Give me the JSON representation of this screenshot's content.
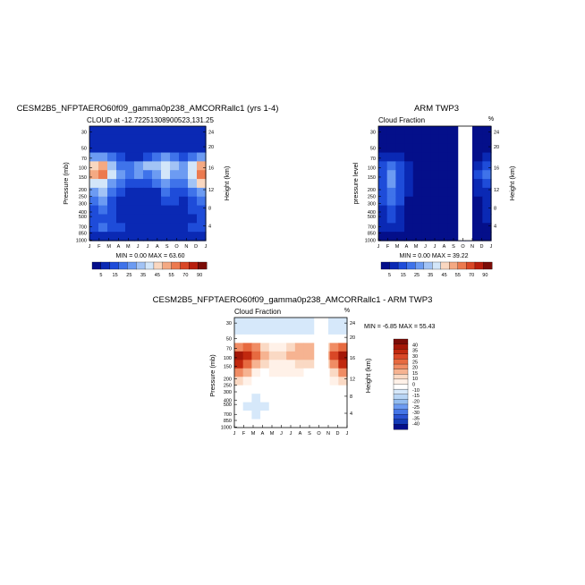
{
  "figure": {
    "panels": [
      {
        "title": "CESM2B5_NFPTAERO60f09_gamma0p238_AMCORRallc1 (yrs 1-4)",
        "subtitle": "CLOUD at -12.72251308900523,131.25",
        "left_unit": "",
        "right_unit": "",
        "ylabel": "Pressure (mb)",
        "ylabel_right": "Height (km)",
        "stats": "MIN =    0.00 MAX =   63.60"
      },
      {
        "title": "ARM TWP3",
        "subtitle": "Cloud Fraction",
        "left_unit": "",
        "right_unit": "%",
        "ylabel": "pressure level",
        "ylabel_right": "Height (km)",
        "stats": "MIN =    0.00 MAX =   39.22"
      },
      {
        "title": "CESM2B5_NFPTAERO60f09_gamma0p238_AMCORRallc1 - ARM TWP3",
        "subtitle": "Cloud Fraction",
        "left_unit": "",
        "right_unit": "%",
        "ylabel": "Pressure (mb)",
        "ylabel_right": "Height (km)",
        "stats": "MIN =   -6.85 MAX =   55.43"
      }
    ]
  },
  "chart_data": [
    {
      "type": "heatmap",
      "title": "CESM2B5_NFPTAERO60f09_gamma0p238_AMCORRallc1 (yrs 1-4)",
      "subtitle": "CLOUD at -12.72251308900523,131.25",
      "x": [
        "J",
        "F",
        "M",
        "A",
        "M",
        "J",
        "J",
        "A",
        "S",
        "O",
        "N",
        "D",
        "J"
      ],
      "y_pressure_ticks": [
        "30",
        "50",
        "70",
        "100",
        "150",
        "200",
        "250",
        "300",
        "400",
        "500",
        "700",
        "850",
        "1000"
      ],
      "y_height_ticks": [
        "24",
        "20",
        "16",
        "12",
        "8",
        "4"
      ],
      "xlabel": "",
      "ylabel": "Pressure (mb)",
      "ylabel_right": "Height (km)",
      "colorbar_labels": [
        "5",
        "15",
        "25",
        "35",
        "45",
        "55",
        "70",
        "90"
      ],
      "min": 0.0,
      "max": 63.6,
      "colors": [
        "#040f8a",
        "#0a29b4",
        "#1e4cd9",
        "#3f73ea",
        "#6c9bf2",
        "#a2c3f5",
        "#d3e6f9",
        "#f9d7c0",
        "#f4a983",
        "#ec7a4f",
        "#d94726",
        "#b81e0d",
        "#7b0c07"
      ],
      "grid": [
        [
          1,
          1,
          1,
          1,
          1,
          1,
          1,
          1,
          1,
          1,
          1,
          1,
          1
        ],
        [
          1,
          1,
          1,
          1,
          1,
          1,
          1,
          1,
          1,
          1,
          1,
          1,
          1
        ],
        [
          1,
          1,
          1,
          1,
          1,
          1,
          1,
          1,
          1,
          1,
          1,
          1,
          1
        ],
        [
          4,
          4,
          3,
          2,
          1,
          1,
          2,
          3,
          4,
          3,
          2,
          3,
          4
        ],
        [
          7,
          8,
          5,
          3,
          3,
          4,
          5,
          5,
          6,
          5,
          4,
          6,
          8
        ],
        [
          8,
          9,
          6,
          4,
          3,
          4,
          3,
          4,
          6,
          4,
          4,
          6,
          9
        ],
        [
          6,
          6,
          4,
          3,
          2,
          2,
          2,
          3,
          4,
          3,
          3,
          5,
          7
        ],
        [
          4,
          5,
          3,
          2,
          1,
          1,
          1,
          1,
          3,
          2,
          2,
          3,
          4
        ],
        [
          3,
          4,
          2,
          1,
          1,
          1,
          1,
          1,
          2,
          2,
          1,
          2,
          3
        ],
        [
          2,
          3,
          2,
          1,
          1,
          1,
          1,
          1,
          1,
          1,
          1,
          2,
          2
        ],
        [
          2,
          2,
          2,
          1,
          1,
          1,
          1,
          1,
          1,
          1,
          1,
          1,
          2
        ],
        [
          2,
          3,
          2,
          2,
          1,
          1,
          1,
          1,
          1,
          1,
          1,
          2,
          2
        ],
        [
          1,
          1,
          1,
          1,
          1,
          1,
          1,
          1,
          1,
          1,
          1,
          1,
          1
        ]
      ],
      "gap_x": null
    },
    {
      "type": "heatmap",
      "title": "ARM TWP3",
      "subtitle": "Cloud Fraction",
      "x": [
        "J",
        "F",
        "M",
        "A",
        "M",
        "J",
        "J",
        "A",
        "S",
        "O",
        "N",
        "D",
        "J"
      ],
      "y_pressure_ticks": [
        "30",
        "50",
        "70",
        "100",
        "150",
        "200",
        "250",
        "300",
        "400",
        "500",
        "700",
        "850",
        "1000"
      ],
      "y_height_ticks": [
        "24",
        "20",
        "16",
        "12",
        "8",
        "4"
      ],
      "xlabel": "",
      "ylabel": "pressure level",
      "ylabel_right": "Height (km)",
      "colorbar_labels": [
        "5",
        "15",
        "25",
        "35",
        "45",
        "55",
        "70",
        "90"
      ],
      "min": 0.0,
      "max": 39.22,
      "colors": [
        "#040f8a",
        "#0a29b4",
        "#1e4cd9",
        "#3f73ea",
        "#6c9bf2",
        "#a2c3f5",
        "#d3e6f9",
        "#f9d7c0",
        "#f4a983",
        "#ec7a4f",
        "#d94726",
        "#b81e0d",
        "#7b0c07"
      ],
      "grid": [
        [
          0,
          0,
          0,
          0,
          0,
          0,
          0,
          0,
          0,
          0,
          0,
          0,
          0
        ],
        [
          0,
          0,
          0,
          0,
          0,
          0,
          0,
          0,
          0,
          0,
          0,
          0,
          0
        ],
        [
          0,
          0,
          0,
          0,
          0,
          0,
          0,
          0,
          0,
          0,
          0,
          0,
          0
        ],
        [
          1,
          1,
          1,
          0,
          0,
          0,
          0,
          0,
          0,
          0,
          0,
          0,
          1
        ],
        [
          2,
          3,
          2,
          1,
          0,
          0,
          0,
          0,
          0,
          0,
          0,
          1,
          2
        ],
        [
          2,
          4,
          2,
          1,
          0,
          0,
          0,
          0,
          0,
          0,
          0,
          2,
          3
        ],
        [
          2,
          4,
          2,
          1,
          0,
          0,
          0,
          0,
          0,
          0,
          0,
          1,
          2
        ],
        [
          2,
          3,
          2,
          1,
          0,
          0,
          0,
          0,
          0,
          0,
          0,
          1,
          1
        ],
        [
          2,
          3,
          2,
          0,
          0,
          0,
          0,
          0,
          0,
          0,
          0,
          0,
          1
        ],
        [
          1,
          2,
          1,
          0,
          0,
          0,
          0,
          0,
          0,
          0,
          0,
          0,
          1
        ],
        [
          1,
          2,
          1,
          0,
          0,
          0,
          0,
          0,
          0,
          0,
          0,
          0,
          1
        ],
        [
          1,
          1,
          1,
          0,
          0,
          0,
          0,
          0,
          0,
          0,
          0,
          0,
          0
        ],
        [
          0,
          0,
          0,
          0,
          0,
          0,
          0,
          0,
          0,
          0,
          0,
          0,
          0
        ]
      ],
      "gap_x": [
        8.5,
        10
      ]
    },
    {
      "type": "heatmap",
      "title": "CESM2B5_NFPTAERO60f09_gamma0p238_AMCORRallc1 - ARM TWP3",
      "subtitle": "Cloud Fraction",
      "x": [
        "J",
        "F",
        "M",
        "A",
        "M",
        "J",
        "J",
        "A",
        "S",
        "O",
        "N",
        "D",
        "J"
      ],
      "y_pressure_ticks": [
        "30",
        "50",
        "70",
        "100",
        "150",
        "200",
        "250",
        "300",
        "400",
        "500",
        "700",
        "850",
        "1000"
      ],
      "y_height_ticks": [
        "24",
        "20",
        "16",
        "12",
        "8",
        "4"
      ],
      "xlabel": "",
      "ylabel": "Pressure (mb)",
      "ylabel_right": "Height (km)",
      "colorbar_labels": [
        "40",
        "35",
        "30",
        "25",
        "20",
        "15",
        "10",
        "0",
        "-10",
        "-15",
        "-20",
        "-25",
        "-30",
        "-35",
        "-40"
      ],
      "min": -6.85,
      "max": 55.43,
      "colors": [
        "#7b0c07",
        "#a41708",
        "#c1280e",
        "#d94726",
        "#e76a40",
        "#f08c64",
        "#f6b391",
        "#fad9c4",
        "#fff1e8",
        "#ffffff",
        "#d6e8fa",
        "#b8d5f5",
        "#94bdf0",
        "#6c9bf2",
        "#4676e6",
        "#2a52d2",
        "#143bb6",
        "#040f8a"
      ],
      "grid": [
        [
          10,
          10,
          10,
          10,
          10,
          10,
          10,
          10,
          10,
          10,
          10,
          10,
          10
        ],
        [
          10,
          10,
          10,
          10,
          10,
          10,
          10,
          10,
          10,
          10,
          10,
          10,
          10
        ],
        [
          9,
          9,
          9,
          9,
          9,
          9,
          9,
          9,
          9,
          9,
          9,
          9,
          9
        ],
        [
          5,
          4,
          5,
          7,
          8,
          8,
          7,
          6,
          6,
          6,
          7,
          5,
          4
        ],
        [
          1,
          2,
          4,
          6,
          7,
          7,
          6,
          6,
          6,
          6,
          6,
          3,
          1
        ],
        [
          2,
          4,
          6,
          7,
          8,
          8,
          8,
          7,
          7,
          7,
          7,
          5,
          2
        ],
        [
          5,
          6,
          8,
          9,
          8,
          8,
          8,
          8,
          9,
          9,
          9,
          7,
          5
        ],
        [
          7,
          8,
          9,
          9,
          9,
          9,
          9,
          9,
          9,
          9,
          9,
          8,
          7
        ],
        [
          9,
          9,
          9,
          9,
          9,
          9,
          9,
          9,
          9,
          9,
          9,
          9,
          9
        ],
        [
          9,
          9,
          10,
          9,
          9,
          9,
          9,
          9,
          9,
          9,
          9,
          9,
          9
        ],
        [
          9,
          10,
          10,
          10,
          9,
          9,
          9,
          9,
          9,
          9,
          9,
          9,
          9
        ],
        [
          9,
          9,
          10,
          9,
          9,
          9,
          9,
          9,
          9,
          9,
          9,
          9,
          9
        ],
        [
          9,
          9,
          9,
          9,
          9,
          9,
          9,
          9,
          9,
          9,
          9,
          9,
          9
        ]
      ],
      "gap_x": [
        8.5,
        10
      ]
    }
  ]
}
